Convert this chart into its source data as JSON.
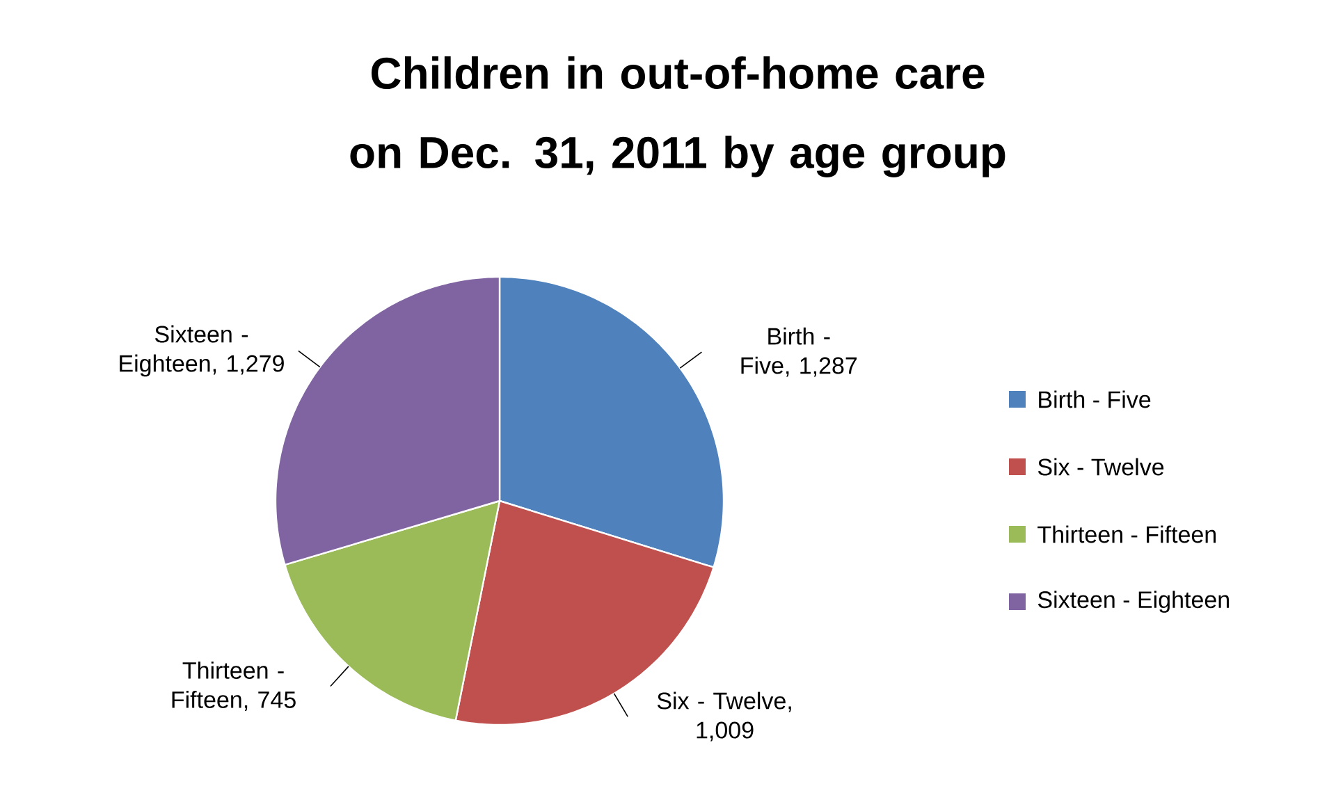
{
  "chart_data": {
    "type": "pie",
    "title": "Children in out-of-home care on Dec. 31, 2011 by age group",
    "categories": [
      "Birth - Five",
      "Six - Twelve",
      "Thirteen - Fifteen",
      "Sixteen - Eighteen"
    ],
    "values": [
      1287,
      1009,
      745,
      1279
    ],
    "value_labels": [
      "Birth - Five, 1,287",
      "Six - Twelve, 1,009",
      "Thirteen - Fifteen, 745",
      "Sixteen - Eighteen, 1,279"
    ],
    "colors": [
      "#4f81bd",
      "#c0504d",
      "#9bbb59",
      "#8064a2"
    ],
    "legend": "right"
  }
}
